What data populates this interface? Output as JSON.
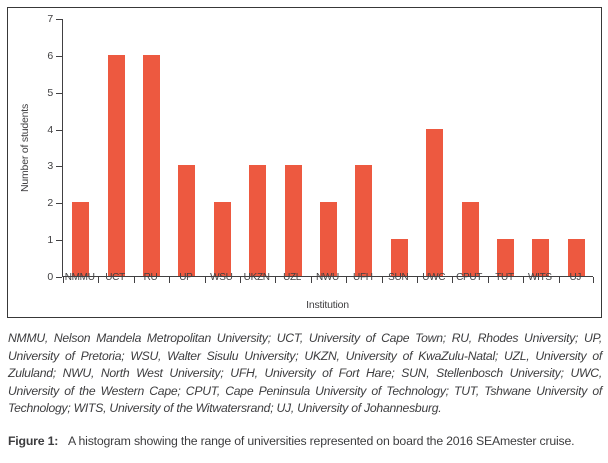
{
  "chart_data": {
    "type": "bar",
    "title": "",
    "xlabel": "Institution",
    "ylabel": "Number of students",
    "categories": [
      "NMMU",
      "UCT",
      "RU",
      "UP",
      "WSU",
      "UKZN",
      "UZL",
      "NWU",
      "UFH",
      "SUN",
      "UWC",
      "CPUT",
      "TUT",
      "WITS",
      "UJ"
    ],
    "values": [
      2,
      6,
      6,
      3,
      2,
      3,
      3,
      2,
      3,
      1,
      4,
      2,
      1,
      1,
      1
    ],
    "ylim": [
      0,
      7
    ],
    "yticks": [
      0,
      1,
      2,
      3,
      4,
      5,
      6,
      7
    ],
    "grid": "off",
    "legend": "none",
    "bar_color": "#ED5940",
    "axis_color": "#414042"
  },
  "footnote": {
    "text": "NMMU, Nelson Mandela Metropolitan University; UCT, University of Cape Town; RU, Rhodes University; UP, University of Pretoria; WSU, Walter Sisulu University; UKZN, University of KwaZulu-Natal; UZL, University of Zululand; NWU, North West University; UFH, University of Fort Hare; SUN, Stellenbosch University; UWC, University of the Western Cape; CPUT, Cape Peninsula University of Technology; TUT, Tshwane University of Technology; WITS, University of the Witwatersrand; UJ, University of Johannesburg."
  },
  "caption": {
    "label": "Figure 1:",
    "text": "A histogram showing the range of universities represented on board the 2016 SEAmester cruise."
  }
}
